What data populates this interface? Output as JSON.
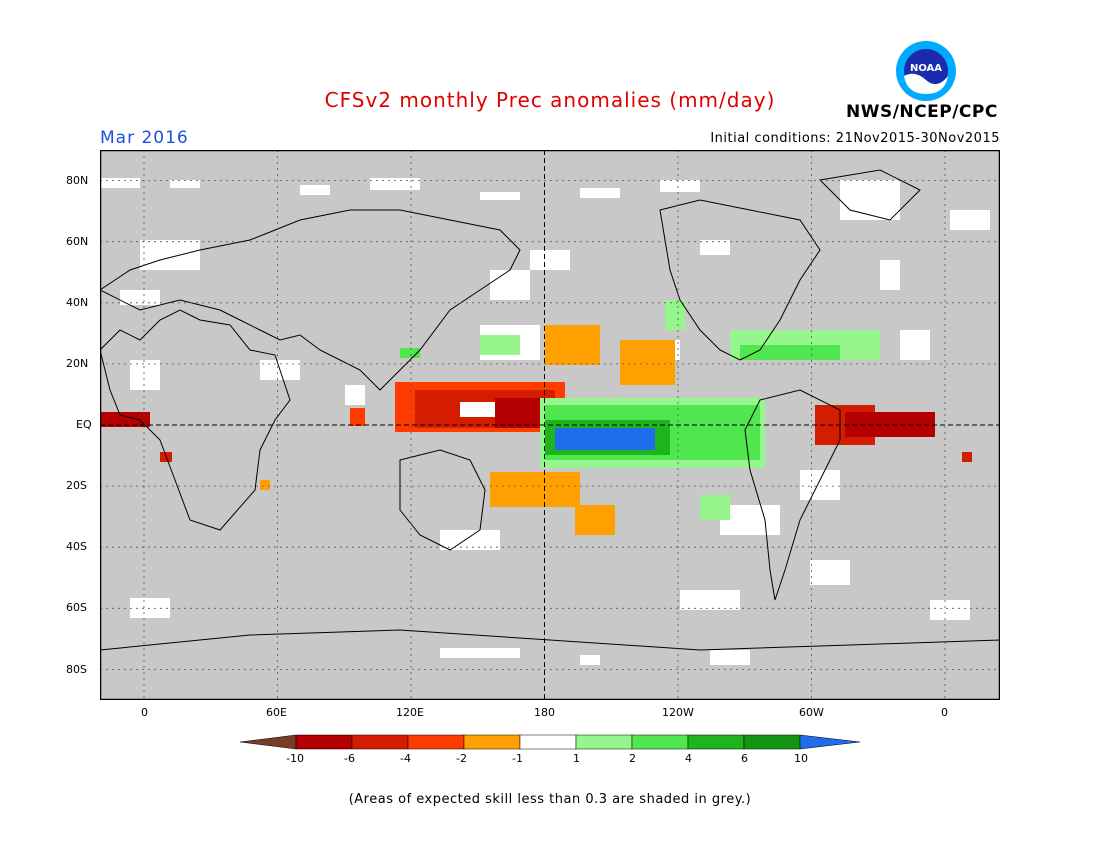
{
  "header": {
    "title": "CFSv2 monthly Prec anomalies (mm/day)",
    "month": "Mar 2016",
    "initial_conditions": "Initial conditions: 21Nov2015-30Nov2015",
    "agency": "NWS/NCEP/CPC",
    "logo_text": "NOAA"
  },
  "map": {
    "lat_labels": [
      "80N",
      "60N",
      "40N",
      "20N",
      "EQ",
      "20S",
      "40S",
      "60S",
      "80S"
    ],
    "lon_labels": [
      "0",
      "60E",
      "120E",
      "180",
      "120W",
      "60W",
      "0"
    ],
    "colors": {
      "background_grey": "#c8c8c8",
      "dark_red": "#b40000",
      "red": "#d41c00",
      "orange_red": "#ff3c00",
      "orange": "#ffa000",
      "light_green": "#96f58c",
      "green": "#50e650",
      "dark_green": "#1eb41e",
      "blue": "#1e6eeb"
    }
  },
  "colorbar": {
    "labels": [
      "-10",
      "-6",
      "-4",
      "-2",
      "-1",
      "1",
      "2",
      "4",
      "6",
      "10"
    ],
    "colors": [
      "#783c28",
      "#b40000",
      "#d41c00",
      "#ff3c00",
      "#ffa000",
      "#ffffff",
      "#96f58c",
      "#50e650",
      "#1eb41e",
      "#129612",
      "#1e6eeb"
    ]
  },
  "footer": "(Areas of expected skill less than 0.3 are shaded in grey.)"
}
